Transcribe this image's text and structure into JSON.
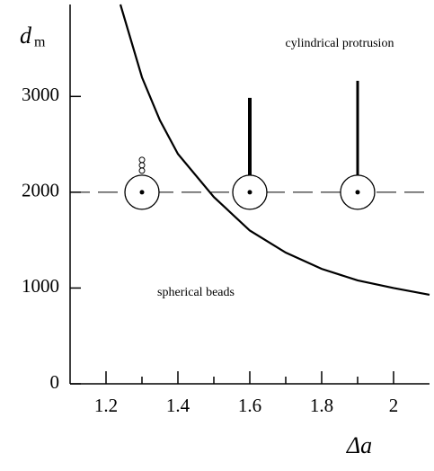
{
  "chart_data": {
    "type": "line",
    "ylabel": "d",
    "ylabel_sub": "m",
    "xlabel": "Δa",
    "x": [
      1.24,
      1.3,
      1.35,
      1.4,
      1.5,
      1.6,
      1.7,
      1.8,
      1.9,
      2.0,
      2.1
    ],
    "series": [
      {
        "color": "#000000",
        "values": [
          3960,
          3200,
          2750,
          2400,
          1950,
          1600,
          1370,
          1200,
          1080,
          1000,
          930
        ]
      }
    ],
    "hline": 2000,
    "markers": {
      "x": [
        1.3,
        1.6,
        1.9
      ],
      "y": [
        2000,
        2000,
        2000
      ]
    },
    "annotations": [
      {
        "text": "cylindrical protrusion",
        "x": 1.85,
        "y": 3550
      },
      {
        "text": "spherical beads",
        "x": 1.45,
        "y": 950
      }
    ],
    "xlim": [
      1.1,
      2.1
    ],
    "ylim": [
      0,
      3960
    ],
    "xticks": [
      1.2,
      1.4,
      1.6,
      1.8,
      2.0
    ],
    "xminorticks": [
      1.3,
      1.5,
      1.7,
      1.9
    ],
    "yticks": [
      0,
      1000,
      2000,
      3000
    ]
  }
}
